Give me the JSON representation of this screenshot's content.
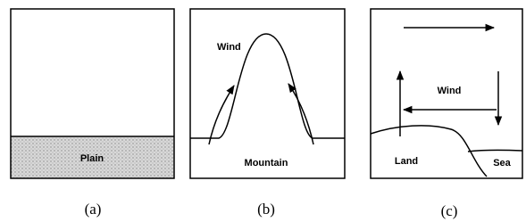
{
  "panels": [
    {
      "caption": "(a)",
      "labels": [
        "Plain"
      ]
    },
    {
      "caption": "(b)",
      "labels": [
        "Wind",
        "Mountain"
      ]
    },
    {
      "caption": "(c)",
      "labels": [
        "Wind",
        "Land",
        "Sea"
      ]
    }
  ]
}
